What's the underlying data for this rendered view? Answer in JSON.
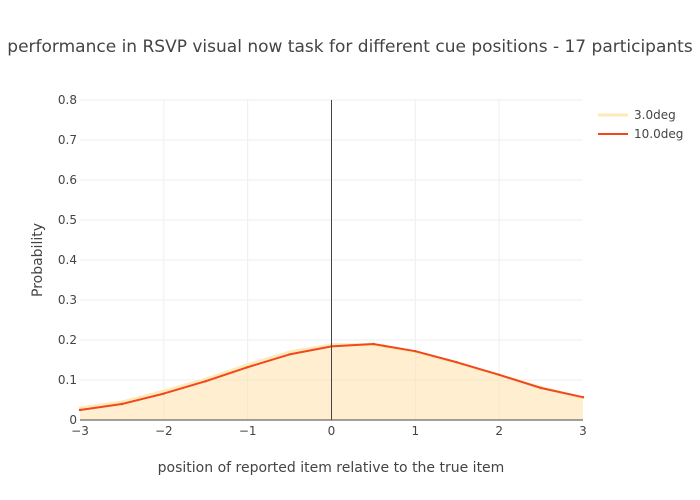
{
  "chart_data": {
    "type": "area",
    "title": "performance in RSVP visual now task for different cue positions - 17 participants",
    "xlabel": "position of reported item relative to the true item",
    "ylabel": "Probability",
    "xlim": [
      -3,
      3
    ],
    "ylim": [
      0,
      0.8
    ],
    "x_ticks": [
      -3,
      -2,
      -1,
      0,
      1,
      2,
      3
    ],
    "x_tick_labels": [
      "−3",
      "−2",
      "−1",
      "0",
      "1",
      "2",
      "3"
    ],
    "y_ticks": [
      0,
      0.1,
      0.2,
      0.3,
      0.4,
      0.5,
      0.6,
      0.7,
      0.8
    ],
    "y_tick_labels": [
      "0",
      "0.1",
      "0.2",
      "0.3",
      "0.4",
      "0.5",
      "0.6",
      "0.7",
      "0.8"
    ],
    "grid": true,
    "legend_position": "top-right",
    "vline_x": 0,
    "x": [
      -3,
      -2.5,
      -2,
      -1.5,
      -1,
      -0.5,
      0,
      0.5,
      1,
      1.5,
      2,
      2.5,
      3
    ],
    "series": [
      {
        "name": "3.0deg",
        "color": "#ffe9b8",
        "fill": "rgba(255,226,170,0.55)",
        "values": [
          0.03,
          0.045,
          0.072,
          0.102,
          0.138,
          0.17,
          0.188,
          0.188,
          0.17,
          0.143,
          0.112,
          0.081,
          0.055
        ]
      },
      {
        "name": "10.0deg",
        "color": "#f0481c",
        "fill": "none",
        "values": [
          0.025,
          0.04,
          0.066,
          0.097,
          0.132,
          0.164,
          0.184,
          0.19,
          0.172,
          0.144,
          0.113,
          0.08,
          0.057
        ]
      }
    ]
  }
}
